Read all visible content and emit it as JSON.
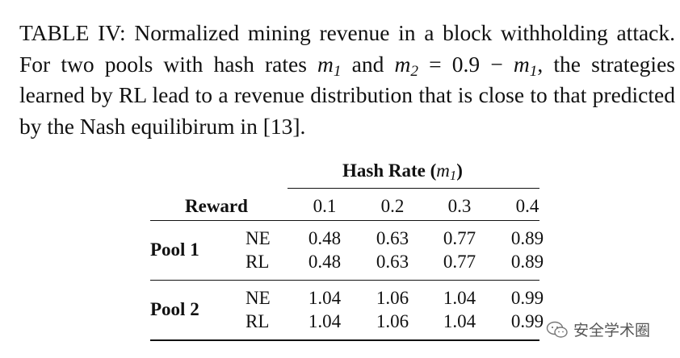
{
  "caption": {
    "prefix": "TABLE IV: Normalized mining revenue in a block withholding attack. For two pools with hash rates ",
    "m": "m",
    "sub1": "1",
    "and": " and ",
    "sub2": "2",
    "eq": " = 0.9 − ",
    "sub3": "1",
    "suffix": ", the strategies learned by RL lead to a revenue distribution that is close to that predicted by the Nash equilibirum in [13]."
  },
  "table": {
    "group_header": "Hash Rate (",
    "group_header_var": "m",
    "group_header_sub": "1",
    "group_header_close": ")",
    "row_header": "Reward",
    "columns": [
      "0.1",
      "0.2",
      "0.3",
      "0.4"
    ],
    "groups": [
      {
        "label": "Pool 1",
        "rows": [
          {
            "label": "NE",
            "values": [
              "0.48",
              "0.63",
              "0.77",
              "0.89"
            ]
          },
          {
            "label": "RL",
            "values": [
              "0.48",
              "0.63",
              "0.77",
              "0.89"
            ]
          }
        ]
      },
      {
        "label": "Pool 2",
        "rows": [
          {
            "label": "NE",
            "values": [
              "1.04",
              "1.06",
              "1.04",
              "0.99"
            ]
          },
          {
            "label": "RL",
            "values": [
              "1.04",
              "1.06",
              "1.04",
              "0.99"
            ]
          }
        ]
      }
    ]
  },
  "watermark": {
    "text": "安全学术圈",
    "icon": "wechat-icon"
  }
}
